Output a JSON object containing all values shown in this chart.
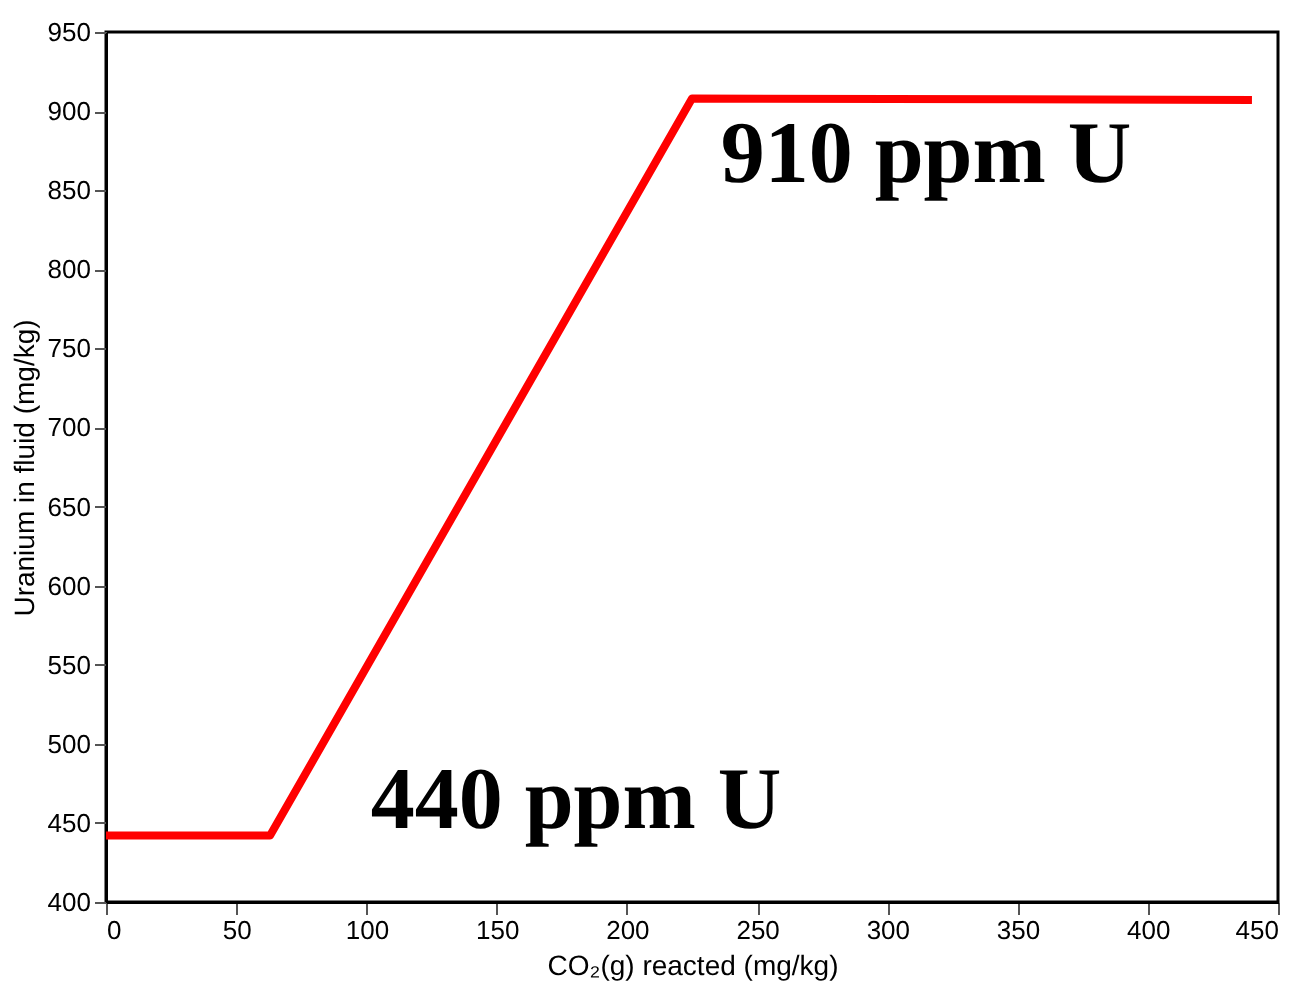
{
  "chart_data": {
    "type": "line",
    "xlabel": "CO₂(g) reacted (mg/kg)",
    "ylabel": "Uranium in fluid (mg/kg)",
    "x": [
      0,
      63,
      225,
      440
    ],
    "series": [
      {
        "color": "#ff0000",
        "values": [
          442,
          442,
          908,
          907
        ]
      }
    ],
    "xlim": [
      0,
      450
    ],
    "xticks": [
      0,
      50,
      100,
      150,
      200,
      250,
      300,
      350,
      400,
      450
    ],
    "ylim": [
      400,
      950
    ],
    "yticks": [
      400,
      450,
      500,
      550,
      600,
      650,
      700,
      750,
      800,
      850,
      900,
      950
    ],
    "grid": false,
    "legend": false,
    "marker": "none",
    "line_style": "solid",
    "annotations": [
      "440 ppm U",
      "910 ppm U"
    ]
  }
}
